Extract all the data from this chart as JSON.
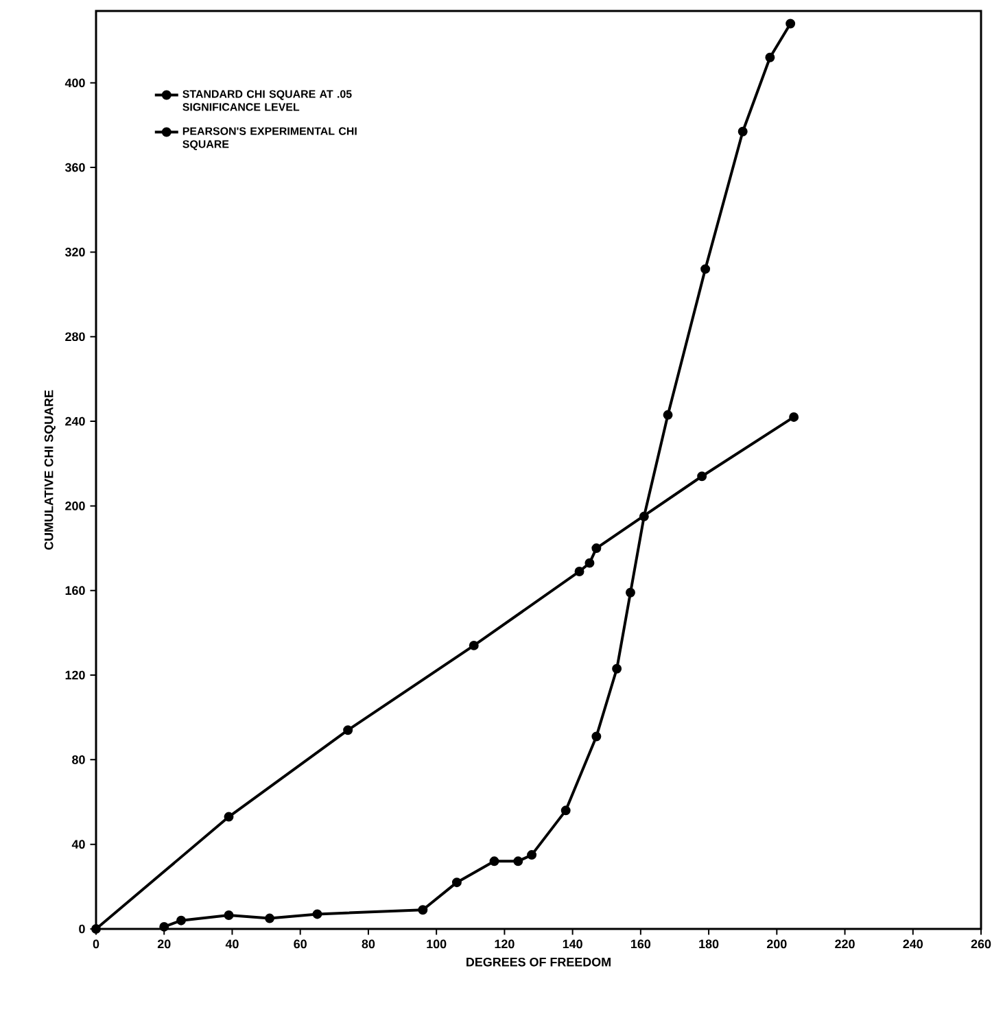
{
  "chart_data": {
    "type": "line",
    "xlabel": "DEGREES OF FREEDOM",
    "ylabel": "CUMULATIVE CHI SQUARE",
    "xlim": [
      0,
      260
    ],
    "ylim": [
      0,
      434
    ],
    "xticks": [
      0,
      20,
      40,
      60,
      80,
      100,
      120,
      140,
      160,
      180,
      200,
      220,
      240,
      260
    ],
    "yticks": [
      0,
      40,
      80,
      120,
      160,
      200,
      240,
      280,
      320,
      360,
      400
    ],
    "grid": false,
    "legend": "top left",
    "marker": "circle",
    "line_style": "solid",
    "series": [
      {
        "name": "STANDARD CHI SQUARE AT .05 SIGNIFICANCE LEVEL",
        "color": "#000000",
        "x": [
          0,
          39,
          74,
          111,
          142,
          145,
          147,
          178,
          205
        ],
        "values": [
          0,
          53,
          94,
          134,
          169,
          173,
          180,
          214,
          242
        ]
      },
      {
        "name": "PEARSON'S EXPERIMENTAL CHI SQUARE",
        "color": "#000000",
        "x": [
          20,
          25,
          39,
          51,
          65,
          96,
          106,
          117,
          124,
          128,
          138,
          147,
          153,
          157,
          161,
          168,
          179,
          190,
          198,
          204
        ],
        "values": [
          1,
          4,
          6.5,
          5,
          7,
          9,
          22,
          32,
          32,
          35,
          56,
          91,
          123,
          159,
          195,
          243,
          312,
          377,
          412,
          428
        ]
      }
    ]
  }
}
